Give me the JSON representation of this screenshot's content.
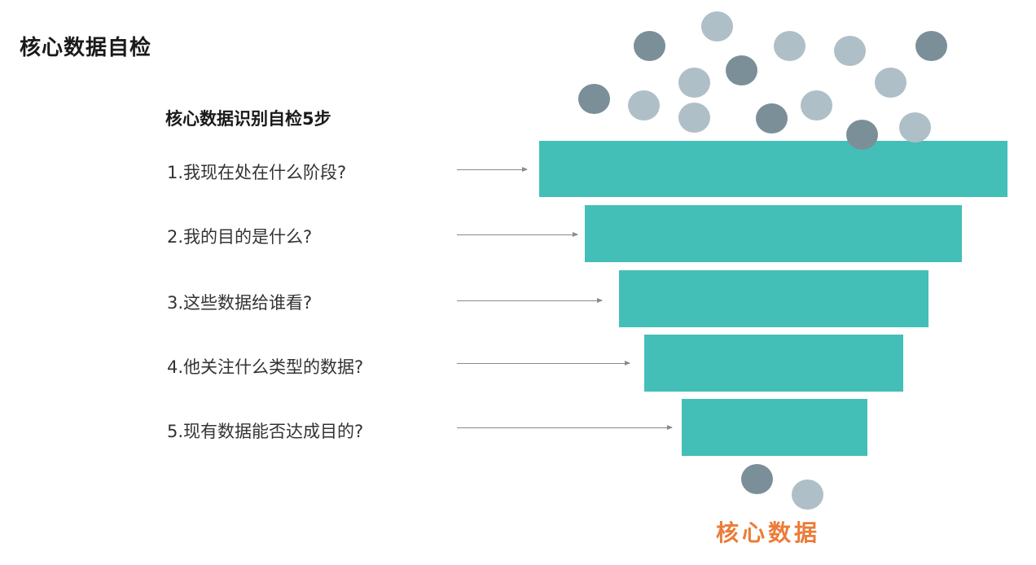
{
  "header": {
    "title": "核心数据自检"
  },
  "steps": {
    "heading": "核心数据识别自检5步",
    "items": [
      "1.我现在处在什么阶段?",
      "2.我的目的是什么?",
      "3.这些数据给谁看?",
      "4.他关注什么类型的数据?",
      "5.现有数据能否达成目的?"
    ]
  },
  "funnel": {
    "bar_color": "#43bfb7",
    "dot_dark": "#7b8f99",
    "dot_light": "#afbfc7"
  },
  "result": {
    "label": "核心数据",
    "color": "#eb7c39"
  }
}
